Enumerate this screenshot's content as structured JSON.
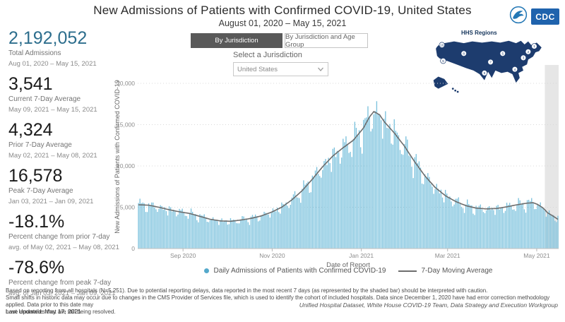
{
  "header": {
    "title": "New Admissions of Patients with Confirmed COVID-19, United States",
    "subtitle": "August 01, 2020 – May 15, 2021"
  },
  "logos": {
    "cdc_label": "CDC"
  },
  "hhs_regions": {
    "label": "HHS Regions",
    "region_numbers": [
      1,
      2,
      3,
      4,
      5,
      6,
      7,
      8,
      9,
      10
    ]
  },
  "tabs": [
    {
      "label": "By Jurisdiction",
      "active": true
    },
    {
      "label": "By Jurisdiction and Age Group",
      "active": false
    }
  ],
  "jurisdiction": {
    "label": "Select a Jurisdiction",
    "value": "United States"
  },
  "stats": [
    {
      "value": "2,192,052",
      "label": "Total Admissions",
      "sublabel": "Aug 01, 2020 – May 15, 2021"
    },
    {
      "value": "3,541",
      "label": "Current 7-Day Average",
      "sublabel": "May 09, 2021 – May 15, 2021"
    },
    {
      "value": "4,324",
      "label": "Prior 7-Day Average",
      "sublabel": "May 02, 2021 – May 08, 2021"
    },
    {
      "value": "16,578",
      "label": "Peak 7-Day Average",
      "sublabel": "Jan 03, 2021 – Jan 09, 2021"
    },
    {
      "value": "-18.1%",
      "label": "Percent change from prior 7-day",
      "sublabel": "avg. of May 02, 2021 – May 08, 2021"
    },
    {
      "value": "-78.6%",
      "label": "Percent change from peak 7-day",
      "sublabel": "avg. of Jan 03, 2021 – Jan 09, 2021"
    }
  ],
  "chart_data": {
    "type": "bar",
    "title": "New Admissions of Patients with Confirmed COVID-19, United States",
    "xlabel": "Date of Report",
    "ylabel": "New Admissions of Patients with Confirmed COVID-19",
    "date_range": {
      "start": "Aug 01, 2020",
      "end": "May 15, 2021"
    },
    "n_days": 288,
    "ylim": [
      0,
      22200
    ],
    "y_ticks": [
      "0",
      "5,000",
      "10,000",
      "15,000",
      "20,000"
    ],
    "y_tick_values": [
      0,
      5000,
      10000,
      15000,
      20000
    ],
    "x_ticks": [
      {
        "label": "Sep 2020",
        "day": 31
      },
      {
        "label": "Nov 2020",
        "day": 92
      },
      {
        "label": "Jan 2021",
        "day": 153
      },
      {
        "label": "Mar 2021",
        "day": 212
      },
      {
        "label": "May 2021",
        "day": 273
      }
    ],
    "series": [
      {
        "name": "Daily Admissions of Patients with Confirmed COVID-19",
        "type": "bar"
      },
      {
        "name": "7-Day Moving Average",
        "type": "line"
      }
    ],
    "moving_average_anchors": [
      [
        0,
        5300
      ],
      [
        7,
        5250
      ],
      [
        14,
        5000
      ],
      [
        21,
        4700
      ],
      [
        28,
        4450
      ],
      [
        35,
        4250
      ],
      [
        42,
        3900
      ],
      [
        49,
        3550
      ],
      [
        56,
        3350
      ],
      [
        63,
        3300
      ],
      [
        70,
        3450
      ],
      [
        77,
        3650
      ],
      [
        84,
        3950
      ],
      [
        91,
        4400
      ],
      [
        98,
        5000
      ],
      [
        105,
        5900
      ],
      [
        112,
        7000
      ],
      [
        119,
        8400
      ],
      [
        126,
        9900
      ],
      [
        133,
        11200
      ],
      [
        140,
        12200
      ],
      [
        147,
        13100
      ],
      [
        154,
        14600
      ],
      [
        158,
        15900
      ],
      [
        161,
        16578
      ],
      [
        165,
        16200
      ],
      [
        168,
        15400
      ],
      [
        175,
        14000
      ],
      [
        182,
        12400
      ],
      [
        189,
        10500
      ],
      [
        196,
        8800
      ],
      [
        203,
        7400
      ],
      [
        210,
        6400
      ],
      [
        217,
        5700
      ],
      [
        224,
        5200
      ],
      [
        231,
        4900
      ],
      [
        238,
        4800
      ],
      [
        245,
        4850
      ],
      [
        252,
        5050
      ],
      [
        259,
        5300
      ],
      [
        266,
        5500
      ],
      [
        270,
        5550
      ],
      [
        273,
        5350
      ],
      [
        277,
        4900
      ],
      [
        280,
        4324
      ],
      [
        284,
        3900
      ],
      [
        287,
        3541
      ]
    ],
    "key_values": {
      "total_admissions": 2192052,
      "current_7day_avg": 3541,
      "prior_7day_avg": 4324,
      "peak_7day_avg": 16578,
      "pct_change_from_prior": -18.1,
      "pct_change_from_peak": -78.6
    },
    "weekday_factors": [
      1.04,
      1.07,
      1.05,
      1.02,
      0.99,
      0.9,
      0.86
    ],
    "shaded_recent_days": 7,
    "legend": [
      {
        "marker": "dot",
        "label": "Daily Admissions of Patients with Confirmed COVID-19"
      },
      {
        "marker": "line",
        "label": "7-Day Moving Average"
      }
    ],
    "legend_position": "bottom",
    "grid": true,
    "colors": {
      "bar": "#7cc2dd",
      "line": "#6d6d6d",
      "shade": "#e6e6e6",
      "legend_dot": "#54a9cb",
      "map": "#1d3c6e"
    }
  },
  "footer": {
    "line1": "Based on reporting from all hospitals (N=5,251). Due to potential reporting delays, data reported in the most recent 7 days (as represented by the shaded bar) should be interpreted with caution.",
    "line2": "Small shifts in historic data may occur due to changes in the CMS Provider of Services file, which is used to identify the cohort of included hospitals. Data since December 1, 2020 have had error correction methodology applied. Data prior to this date may",
    "line3": "have anomalies that are still being resolved.",
    "last_updated": "Last Updated: May 17, 2021",
    "credit": "Unified Hospital Dataset, White House COVID-19 Team, Data Strategy and Execution Workgroup"
  }
}
